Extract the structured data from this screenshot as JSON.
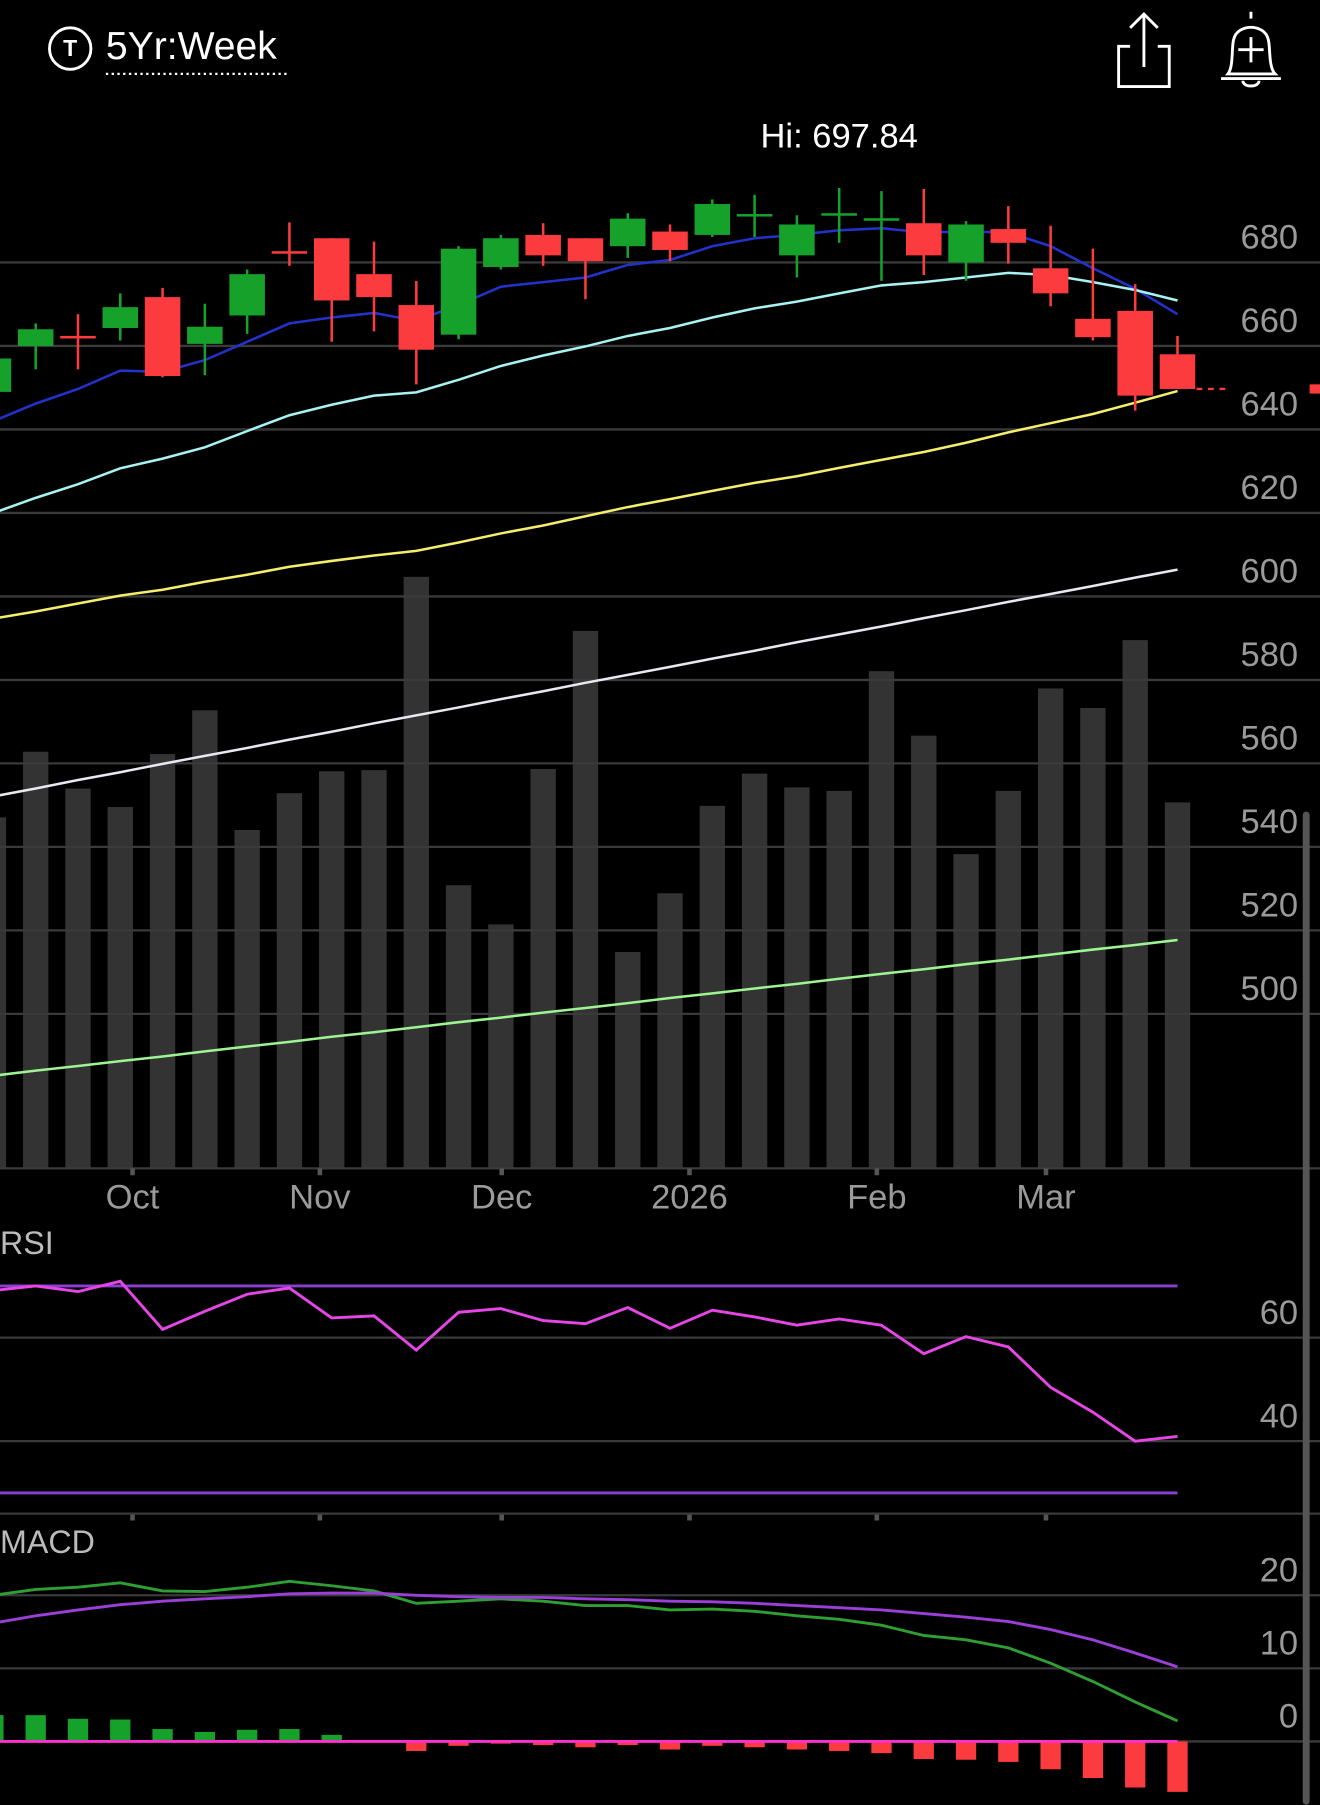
{
  "header": {
    "icon": "T",
    "title": "5Yr:Week"
  },
  "chart_data": [
    {
      "type": "candlestick",
      "annotation": "Hi: 697.84",
      "x": [
        0,
        1,
        2,
        3,
        4,
        5,
        6,
        7,
        8,
        9,
        10,
        11,
        12,
        13,
        14,
        15,
        16,
        17,
        18,
        19,
        20,
        21,
        22,
        23,
        24,
        25,
        26,
        27,
        28
      ],
      "open": [
        649,
        660,
        662.4,
        664.3,
        671.7,
        660.5,
        667.3,
        682.7,
        685.8,
        677.2,
        669.8,
        662.7,
        678.9,
        686.6,
        685.8,
        683.9,
        687.4,
        686.6,
        691.3,
        681.7,
        691.3,
        690.2,
        689.4,
        680,
        688,
        678.6,
        666.5,
        668.4,
        658
      ],
      "high": [
        658,
        665.4,
        667.6,
        672.6,
        673.9,
        670.1,
        678.3,
        689.6,
        685.8,
        685,
        675.6,
        683.9,
        686.6,
        689.4,
        685.8,
        691.8,
        689.1,
        695.1,
        696.2,
        691.3,
        697.84,
        697.1,
        697.6,
        689.9,
        693.5,
        688.8,
        683.3,
        674.8,
        662.4
      ],
      "low": [
        648,
        654.4,
        654.4,
        661.3,
        652.5,
        653,
        662.9,
        679.2,
        661,
        663.5,
        650.8,
        661.6,
        678.3,
        679.2,
        671.2,
        681.1,
        680.3,
        686.1,
        686.1,
        676.4,
        684.7,
        675.6,
        677,
        675.6,
        679.7,
        669.5,
        661.3,
        644.5,
        649.7
      ],
      "close": [
        657,
        664,
        661.8,
        669.3,
        652.8,
        664.6,
        677.2,
        682.2,
        670.9,
        671.7,
        659.1,
        683.3,
        685.8,
        681.7,
        680.3,
        690.5,
        683,
        694,
        691.6,
        689.1,
        691.8,
        690.6,
        681.7,
        689.1,
        684.7,
        672.6,
        662.1,
        648.1,
        649.7
      ],
      "up_color": "#15a12a",
      "down_color": "#fc3b3f",
      "series": [
        {
          "color": "#2233cc",
          "values": [
            642,
            646.2,
            649.7,
            654.1,
            653.8,
            656.6,
            661,
            665.4,
            666.8,
            667.9,
            666,
            669.8,
            674.2,
            675.3,
            676.4,
            679.4,
            680.6,
            683.9,
            685.8,
            686.6,
            687.7,
            688.2,
            687.2,
            687.4,
            687.2,
            683.9,
            678.6,
            673.7,
            667.6
          ]
        },
        {
          "color": "#a8f2f2",
          "values": [
            620,
            623.6,
            626.9,
            630.7,
            633,
            635.7,
            639.6,
            643.4,
            645.9,
            648.1,
            648.9,
            651.9,
            655.2,
            657.7,
            659.9,
            662.4,
            664.3,
            666.8,
            669,
            670.6,
            672.6,
            674.5,
            675.3,
            676.4,
            677.5,
            677,
            675.3,
            673.4,
            670.9
          ]
        },
        {
          "color": "#f5ee6c",
          "values": [
            594.7,
            596.4,
            598.3,
            600.2,
            601.6,
            603.5,
            605.2,
            607.1,
            608.5,
            609.8,
            610.9,
            612.9,
            615.1,
            617,
            619.2,
            621.4,
            623.3,
            625.3,
            627.2,
            628.8,
            630.8,
            632.7,
            634.6,
            636.8,
            639.3,
            641.5,
            643.7,
            646.4,
            649.2
          ]
        },
        {
          "color": "#e8e8f2",
          "values": [
            552.1,
            554,
            556,
            557.9,
            559.9,
            561.8,
            563.7,
            565.7,
            567.6,
            569.6,
            571.5,
            573.4,
            575.4,
            577.3,
            579.3,
            581.2,
            583.1,
            585.1,
            587,
            589,
            590.9,
            592.8,
            594.8,
            596.7,
            598.7,
            600.6,
            602.5,
            604.5,
            606.4
          ]
        },
        {
          "color": "#9cf590",
          "values": [
            485.2,
            486.4,
            487.5,
            488.7,
            489.8,
            491,
            492.2,
            493.3,
            494.5,
            495.6,
            496.8,
            498,
            499.1,
            500.3,
            501.4,
            502.6,
            503.8,
            504.9,
            506.1,
            507.2,
            508.4,
            509.6,
            510.7,
            511.9,
            513,
            514.2,
            515.4,
            516.5,
            517.7
          ]
        }
      ],
      "volume": [
        305,
        362,
        330,
        314,
        360,
        398,
        294,
        326,
        345,
        346,
        514,
        246,
        212,
        347,
        467,
        188,
        239,
        315,
        343,
        331,
        328,
        432,
        376,
        273,
        328,
        417,
        400,
        459,
        318
      ],
      "volume_color": "#333333",
      "volume_lim": [
        0,
        925
      ],
      "xlim": [
        0.156,
        31.37
      ],
      "xticks": [
        {
          "value": 3.29,
          "label": "Oct"
        },
        {
          "value": 7.72,
          "label": "Nov"
        },
        {
          "value": 12.02,
          "label": "Dec"
        },
        {
          "value": 16.46,
          "label": "2026"
        },
        {
          "value": 20.89,
          "label": "Feb"
        },
        {
          "value": 24.89,
          "label": "Mar"
        }
      ],
      "ylim": [
        463,
        718
      ],
      "yticks": [
        680,
        660,
        640,
        620,
        600,
        580,
        560,
        540,
        520,
        500
      ],
      "grid": true
    },
    {
      "type": "line",
      "title": "RSI",
      "x": [
        0,
        1,
        2,
        3,
        4,
        5,
        6,
        7,
        8,
        9,
        10,
        11,
        12,
        13,
        14,
        15,
        16,
        17,
        18,
        19,
        20,
        21,
        22,
        23,
        24,
        25,
        26,
        27,
        28
      ],
      "series": [
        {
          "color": "#e646e6",
          "values": [
            69.1,
            70,
            68.9,
            70.9,
            61.6,
            65.1,
            68.4,
            69.6,
            63.8,
            64.2,
            57.6,
            64.9,
            65.6,
            63.3,
            62.7,
            65.8,
            61.8,
            65.3,
            64,
            62.4,
            63.6,
            62.4,
            56.9,
            60.2,
            58.2,
            50.4,
            45.6,
            40,
            40.9
          ]
        }
      ],
      "levels": [
        70,
        30
      ],
      "level_color": "#8a3fd0",
      "xlim": [
        0.156,
        31.37
      ],
      "ylim": [
        26,
        81.6
      ],
      "yticks": [
        60,
        40
      ],
      "grid": true
    },
    {
      "type": "macd",
      "title": "MACD",
      "x": [
        0,
        1,
        2,
        3,
        4,
        5,
        6,
        7,
        8,
        9,
        10,
        11,
        12,
        13,
        14,
        15,
        16,
        17,
        18,
        19,
        20,
        21,
        22,
        23,
        24,
        25,
        26,
        27,
        28
      ],
      "series": [
        {
          "color": "#2f9f34",
          "values": [
            20,
            20.8,
            21.1,
            21.7,
            20.6,
            20.5,
            21.1,
            21.9,
            21.3,
            20.6,
            18.9,
            19.2,
            19.5,
            19.2,
            18.6,
            18.6,
            18,
            18.1,
            17.8,
            17.2,
            16.7,
            15.9,
            14.5,
            13.9,
            12.8,
            10.7,
            8.2,
            5.4,
            2.8
          ]
        },
        {
          "color": "#9a3fd8",
          "values": [
            16.2,
            17.2,
            18,
            18.7,
            19.2,
            19.5,
            19.8,
            20.2,
            20.3,
            20.3,
            20,
            19.8,
            19.7,
            19.7,
            19.5,
            19.4,
            19.2,
            19.1,
            18.9,
            18.6,
            18.3,
            18,
            17.5,
            17,
            16.4,
            15.3,
            13.9,
            12.1,
            10.2
          ]
        }
      ],
      "histogram": [
        3.6,
        3.6,
        3.1,
        3,
        1.7,
        1.3,
        1.6,
        1.7,
        0.9,
        0.1,
        -1.3,
        -0.6,
        -0.3,
        -0.5,
        -0.8,
        -0.5,
        -1.1,
        -0.6,
        -0.8,
        -1.1,
        -1.3,
        -1.6,
        -2.4,
        -2.5,
        -2.8,
        -3.8,
        -5,
        -6.3,
        -6.9
      ],
      "up_color": "#15a12a",
      "down_color": "#fc3b3f",
      "zero_color": "#ff2fd0",
      "xlim": [
        0.156,
        31.37
      ],
      "ylim": [
        -8.66,
        29.6
      ],
      "yticks": [
        20,
        10,
        0
      ],
      "grid": true
    }
  ]
}
